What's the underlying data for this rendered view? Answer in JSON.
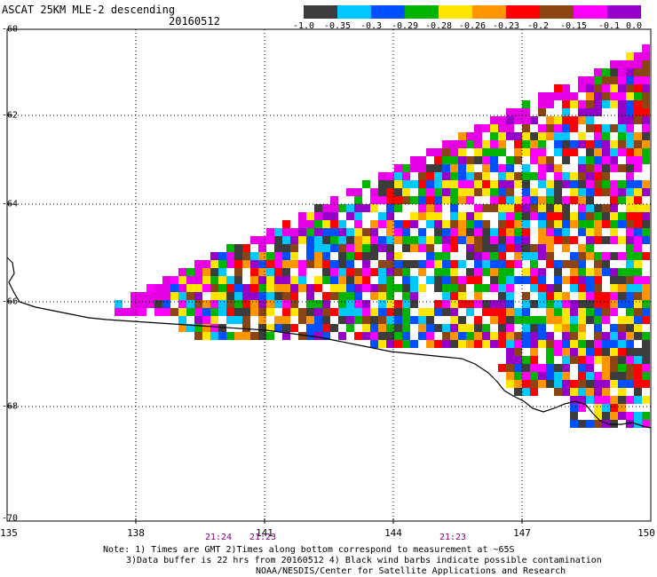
{
  "header": {
    "title": "ASCAT 25KM MLE-2 descending",
    "date": "20160512"
  },
  "legend": {
    "colors": [
      "#3c3c3c",
      "#00c8ff",
      "#0050ff",
      "#00b400",
      "#ffe600",
      "#ff9600",
      "#ff0000",
      "#8b4513",
      "#ff00ff",
      "#9600c8"
    ],
    "labels": [
      "-1.0",
      "-0.35",
      "-0.3",
      "-0.29",
      "-0.28",
      "-0.26",
      "-0.23",
      "-0.2",
      "-0.15",
      "-0.1",
      "0.0"
    ]
  },
  "map": {
    "lon_labels": [
      "135",
      "138",
      "141",
      "144",
      "147",
      "150"
    ],
    "lat_labels": [
      "-60",
      "-62",
      "-64",
      "-66",
      "-68",
      "-70"
    ],
    "time_labels": [
      "21:24",
      "21:23",
      "21:23"
    ],
    "extent": {
      "lon_min": 135,
      "lon_max": 150,
      "lat_min": -70,
      "lat_max": -60
    }
  },
  "notes": {
    "line1": "Note: 1) Times are GMT 2)Times along bottom correspond to measurement at ~65S",
    "line2": "3)Data buffer is 22 hrs from 20160512 4) Black wind barbs indicate possible contamination",
    "line3": "NOAA/NESDIS/Center for Satellite Applications and Research"
  }
}
